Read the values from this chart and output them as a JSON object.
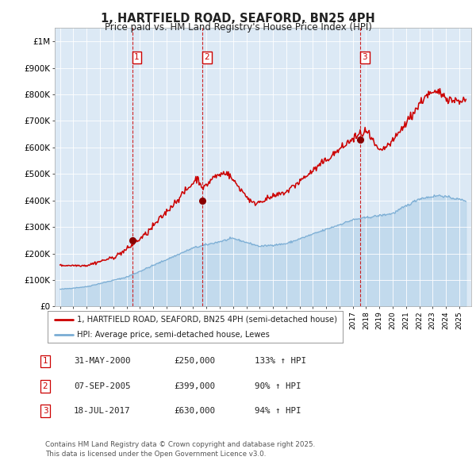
{
  "title": "1, HARTFIELD ROAD, SEAFORD, BN25 4PH",
  "subtitle": "Price paid vs. HM Land Registry's House Price Index (HPI)",
  "bg_color": "#dce9f5",
  "red_line_color": "#cc0000",
  "blue_line_color": "#7aadd4",
  "marker_color": "#880000",
  "ylim": [
    0,
    1050000
  ],
  "yticks": [
    0,
    100000,
    200000,
    300000,
    400000,
    500000,
    600000,
    700000,
    800000,
    900000,
    1000000
  ],
  "ytick_labels": [
    "£0",
    "£100K",
    "£200K",
    "£300K",
    "£400K",
    "£500K",
    "£600K",
    "£700K",
    "£800K",
    "£900K",
    "£1M"
  ],
  "sale_dates": [
    2000.42,
    2005.68,
    2017.54
  ],
  "sale_prices": [
    250000,
    399000,
    630000
  ],
  "vline_labels": [
    "1",
    "2",
    "3"
  ],
  "legend_house": "1, HARTFIELD ROAD, SEAFORD, BN25 4PH (semi-detached house)",
  "legend_hpi": "HPI: Average price, semi-detached house, Lewes",
  "table_rows": [
    [
      "1",
      "31-MAY-2000",
      "£250,000",
      "133% ↑ HPI"
    ],
    [
      "2",
      "07-SEP-2005",
      "£399,000",
      "90% ↑ HPI"
    ],
    [
      "3",
      "18-JUL-2017",
      "£630,000",
      "94% ↑ HPI"
    ]
  ],
  "footer": "Contains HM Land Registry data © Crown copyright and database right 2025.\nThis data is licensed under the Open Government Licence v3.0."
}
